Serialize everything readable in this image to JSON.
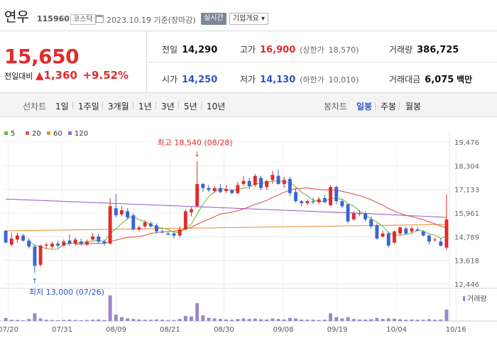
{
  "header": {
    "stock_name": "연우",
    "code": "115960",
    "market": "코스닥",
    "date": "2023.10.19 기준(장마감)",
    "realtime": "실시간",
    "company_overview": "기업개요 ▾"
  },
  "summary": {
    "price": "15,650",
    "change_label": "전일대비",
    "change_arrow": "▲",
    "change_value": "1,360",
    "change_pct": "+9.52%",
    "prev_close_label": "전일",
    "prev_close": "14,290",
    "high_label": "고가",
    "high": "16,900",
    "upper_limit_label": "(상한가",
    "upper_limit": "18,570)",
    "volume_label": "거래량",
    "volume": "386,725",
    "open_label": "시가",
    "open": "14,250",
    "low_label": "저가",
    "low": "14,130",
    "lower_limit_label": "(하한가",
    "lower_limit": "10,010)",
    "amount_label": "거래대금",
    "amount": "6,075",
    "amount_unit": "백만"
  },
  "toolbar": {
    "line_chart_label": "선차트",
    "periods": [
      "1일",
      "1주일",
      "3개월",
      "1년",
      "3년",
      "5년",
      "10년"
    ],
    "candle_label": "봉차트",
    "candle_periods": [
      "일봉",
      "주봉",
      "월봉"
    ],
    "active_candle": "일봉"
  },
  "colors": {
    "up": "#e22b2b",
    "down": "#3b63d6",
    "ma5": "#6dbb47",
    "ma20": "#e05555",
    "ma60": "#e9943a",
    "ma120": "#a064cc",
    "volume": "#9b86cb"
  },
  "chart_data": {
    "type": "candlestick",
    "legend": [
      {
        "name": "5",
        "color": "#6dbb47"
      },
      {
        "name": "20",
        "color": "#e05555"
      },
      {
        "name": "60",
        "color": "#e9943a"
      },
      {
        "name": "120",
        "color": "#a064cc"
      }
    ],
    "y_ticks": [
      "19,476",
      "18,304",
      "17,133",
      "15,961",
      "14,789",
      "13,618",
      "12,446"
    ],
    "y_range": [
      12446,
      19476
    ],
    "x_labels": [
      "07/20",
      "07/31",
      "08/09",
      "08/21",
      "08/30",
      "09/08",
      "09/19",
      "10/04",
      "10/16"
    ],
    "annotations": {
      "high": "최고 18,540 (08/28)",
      "low": "최저 13,000 (07/26)"
    },
    "volume_label": "거래량",
    "candles": [
      [
        15080,
        14500,
        15120,
        14470
      ],
      [
        14400,
        14700,
        15000,
        14300
      ],
      [
        14650,
        14850,
        15000,
        14500
      ],
      [
        14850,
        14600,
        14950,
        14550
      ],
      [
        14600,
        14300,
        14700,
        14200
      ],
      [
        14300,
        13350,
        14400,
        13000
      ],
      [
        13400,
        14350,
        14400,
        13300
      ],
      [
        14350,
        14400,
        14500,
        14200
      ],
      [
        14300,
        14450,
        14550,
        14200
      ],
      [
        14450,
        14350,
        14600,
        14250
      ],
      [
        14350,
        14550,
        14650,
        14300
      ],
      [
        14600,
        14450,
        14900,
        14350
      ],
      [
        14450,
        14650,
        14750,
        14350
      ],
      [
        14550,
        14450,
        14700,
        14350
      ],
      [
        14400,
        14550,
        14650,
        14350
      ],
      [
        14650,
        14800,
        14950,
        14600
      ],
      [
        14800,
        14550,
        14950,
        14450
      ],
      [
        14550,
        14450,
        14650,
        14350
      ],
      [
        14450,
        16300,
        16700,
        14400
      ],
      [
        16200,
        15850,
        16900,
        15750
      ],
      [
        15900,
        16100,
        16300,
        15800
      ],
      [
        16050,
        15750,
        16200,
        15650
      ],
      [
        15850,
        15150,
        15950,
        15100
      ],
      [
        15150,
        15250,
        15350,
        15050
      ],
      [
        15300,
        15500,
        15600,
        15200
      ],
      [
        15450,
        15300,
        15550,
        15250
      ],
      [
        15350,
        15050,
        15450,
        14950
      ],
      [
        15050,
        15000,
        15150,
        14950
      ],
      [
        14950,
        14900,
        15050,
        14850
      ],
      [
        14950,
        14850,
        15000,
        14700
      ],
      [
        14850,
        15150,
        15300,
        14750
      ],
      [
        15150,
        16050,
        16150,
        15100
      ],
      [
        16000,
        16150,
        16250,
        15800
      ],
      [
        16300,
        17400,
        18540,
        17200
      ],
      [
        17400,
        17200,
        17450,
        17000
      ],
      [
        17200,
        17100,
        17350,
        17000
      ],
      [
        17050,
        17200,
        17300,
        16950
      ],
      [
        17200,
        17000,
        17400,
        16950
      ],
      [
        17050,
        17150,
        17350,
        16950
      ],
      [
        17100,
        16950,
        17150,
        16900
      ],
      [
        16950,
        17350,
        17500,
        16900
      ],
      [
        17400,
        17550,
        17800,
        17300
      ],
      [
        17550,
        17300,
        17700,
        17150
      ],
      [
        17350,
        17800,
        17900,
        17250
      ],
      [
        17700,
        17200,
        17800,
        17100
      ],
      [
        17250,
        17550,
        17600,
        17100
      ],
      [
        17600,
        17850,
        18050,
        17400
      ],
      [
        17800,
        17400,
        18100,
        17350
      ],
      [
        17400,
        17600,
        17750,
        17200
      ],
      [
        17650,
        16950,
        17750,
        16800
      ],
      [
        17000,
        16550,
        17200,
        16450
      ],
      [
        16550,
        16450,
        16600,
        16300
      ],
      [
        16450,
        16550,
        16650,
        16350
      ],
      [
        16550,
        16500,
        16700,
        16400
      ],
      [
        16500,
        16650,
        16750,
        16400
      ],
      [
        16700,
        16500,
        16850,
        16450
      ],
      [
        16350,
        17250,
        17350,
        16300
      ],
      [
        17250,
        16550,
        17300,
        16400
      ],
      [
        16550,
        16300,
        16650,
        16200
      ],
      [
        16400,
        15550,
        16400,
        15450
      ],
      [
        15650,
        15950,
        16050,
        15600
      ],
      [
        15950,
        15950,
        16100,
        15800
      ],
      [
        15950,
        15650,
        16050,
        15550
      ],
      [
        15650,
        15300,
        15800,
        15200
      ],
      [
        15350,
        14700,
        15450,
        14650
      ],
      [
        14800,
        14950,
        15100,
        14750
      ],
      [
        14950,
        14350,
        15050,
        14250
      ],
      [
        14500,
        15050,
        15100,
        14450
      ],
      [
        14950,
        15250,
        15300,
        14850
      ],
      [
        15200,
        14950,
        15300,
        14900
      ],
      [
        15050,
        15200,
        15300,
        14950
      ],
      [
        15150,
        15100,
        15300,
        15050
      ],
      [
        15050,
        14850,
        15100,
        14800
      ],
      [
        14850,
        14550,
        14900,
        14400
      ],
      [
        14650,
        14650,
        14750,
        14550
      ],
      [
        14550,
        14350,
        14700,
        14300
      ],
      [
        14250,
        15650,
        16900,
        14130
      ]
    ],
    "volumes": [
      0.12,
      0.05,
      0.04,
      0.03,
      0.08,
      0.3,
      0.1,
      0.05,
      0.04,
      0.03,
      0.04,
      0.05,
      0.04,
      0.03,
      0.04,
      0.05,
      0.06,
      0.04,
      1.0,
      0.25,
      0.15,
      0.1,
      0.08,
      0.06,
      0.05,
      0.05,
      0.06,
      0.05,
      0.04,
      0.04,
      0.08,
      0.2,
      0.18,
      0.7,
      0.22,
      0.12,
      0.1,
      0.08,
      0.06,
      0.05,
      0.08,
      0.1,
      0.08,
      0.1,
      0.07,
      0.06,
      0.1,
      0.08,
      0.06,
      0.12,
      0.1,
      0.06,
      0.05,
      0.05,
      0.04,
      0.05,
      0.3,
      0.15,
      0.1,
      0.15,
      0.08,
      0.06,
      0.06,
      0.07,
      0.12,
      0.08,
      0.1,
      0.09,
      0.07,
      0.05,
      0.06,
      0.05,
      0.05,
      0.07,
      0.05,
      0.06,
      0.45
    ]
  }
}
